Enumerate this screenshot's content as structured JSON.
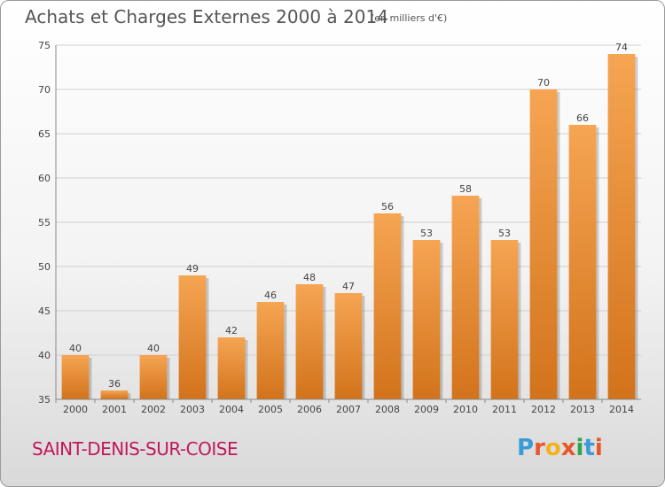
{
  "header": {
    "title": "Achats et Charges Externes 2000 à 2014",
    "unit": "(en milliers d'€)"
  },
  "footer": {
    "commune": "SAINT-DENIS-SUR-COISE",
    "logo_letters": [
      "P",
      "r",
      "o",
      "x",
      "i",
      "t",
      "i"
    ]
  },
  "colors": {
    "bar_top": "#f6a553",
    "bar_bottom": "#d2731b",
    "commune": "#c2185b",
    "logo": [
      "#3a9bd6",
      "#e8562a",
      "#f2b21c",
      "#e8562a",
      "#2ea44f",
      "#3a9bd6",
      "#e8562a"
    ]
  },
  "chart_data": {
    "type": "bar",
    "categories": [
      "2000",
      "2001",
      "2002",
      "2003",
      "2004",
      "2005",
      "2006",
      "2007",
      "2008",
      "2009",
      "2010",
      "2011",
      "2012",
      "2013",
      "2014"
    ],
    "values": [
      40,
      36,
      40,
      49,
      42,
      46,
      48,
      47,
      56,
      53,
      58,
      53,
      70,
      66,
      74
    ],
    "title": "Achats et Charges Externes 2000 à 2014",
    "ylim": [
      35,
      75
    ],
    "yticks": [
      35,
      40,
      45,
      50,
      55,
      60,
      65,
      70,
      75
    ],
    "grid": true,
    "data_labels": true
  }
}
